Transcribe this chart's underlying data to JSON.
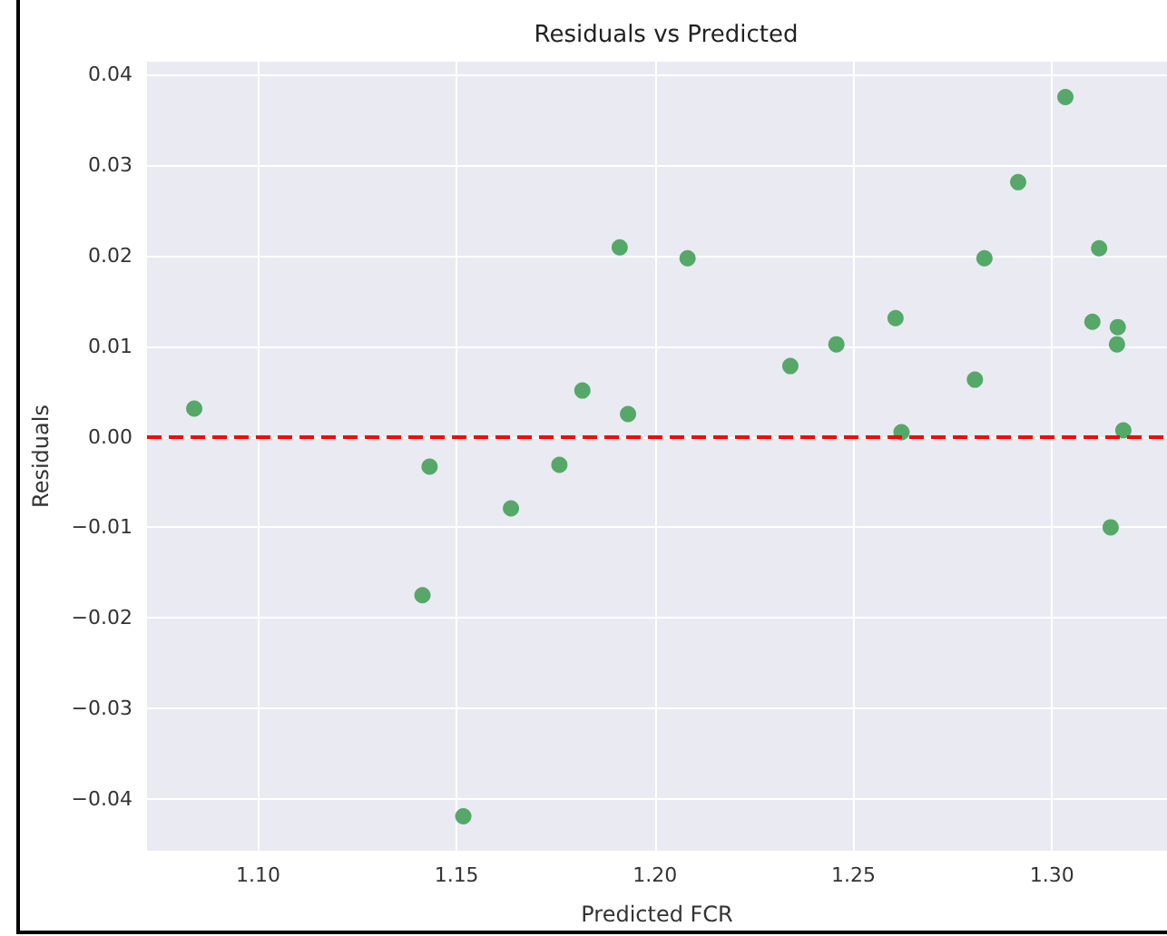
{
  "chart_data": {
    "type": "scatter",
    "title": "Residuals vs Predicted",
    "xlabel": "Predicted FCR",
    "ylabel": "Residuals",
    "x": [
      1.0839,
      1.1432,
      1.1414,
      1.1517,
      1.1637,
      1.1759,
      1.1817,
      1.1911,
      1.1932,
      1.2082,
      1.2341,
      1.2457,
      1.2606,
      1.2621,
      1.2806,
      1.283,
      1.2915,
      1.3034,
      1.3102,
      1.3119,
      1.3166,
      1.3164,
      1.318,
      1.3148
    ],
    "series": [
      {
        "color": "#55a868",
        "values": [
          0.0031,
          -0.0033,
          -0.0175,
          -0.0419,
          -0.0079,
          -0.0031,
          0.0051,
          0.0209,
          0.0025,
          0.0197,
          0.0078,
          0.0102,
          0.0131,
          0.0005,
          0.0063,
          0.0197,
          0.0281,
          0.0375,
          0.0127,
          0.0208,
          0.0121,
          0.0102,
          0.0007,
          -0.01
        ]
      }
    ],
    "xlim": [
      1.072,
      1.329
    ],
    "xticks": [
      {
        "value": 1.1,
        "label": "1.10"
      },
      {
        "value": 1.15,
        "label": "1.15"
      },
      {
        "value": 1.2,
        "label": "1.20"
      },
      {
        "value": 1.25,
        "label": "1.25"
      },
      {
        "value": 1.3,
        "label": "1.30"
      }
    ],
    "ylim": [
      -0.0457,
      0.0414
    ],
    "yticks": [
      {
        "value": -0.04,
        "label": "−0.04"
      },
      {
        "value": -0.03,
        "label": "−0.03"
      },
      {
        "value": -0.02,
        "label": "−0.02"
      },
      {
        "value": -0.01,
        "label": "−0.01"
      },
      {
        "value": 0,
        "label": "0.00"
      },
      {
        "value": 0.01,
        "label": "0.01"
      },
      {
        "value": 0.02,
        "label": "0.02"
      },
      {
        "value": 0.03,
        "label": "0.03"
      },
      {
        "value": 0.04,
        "label": "0.04"
      }
    ],
    "ref_lines": [
      {
        "axis": "y",
        "value": 0,
        "color": "#ff0000",
        "line_style": "dashed"
      }
    ],
    "grid": true,
    "marker": "circle"
  }
}
